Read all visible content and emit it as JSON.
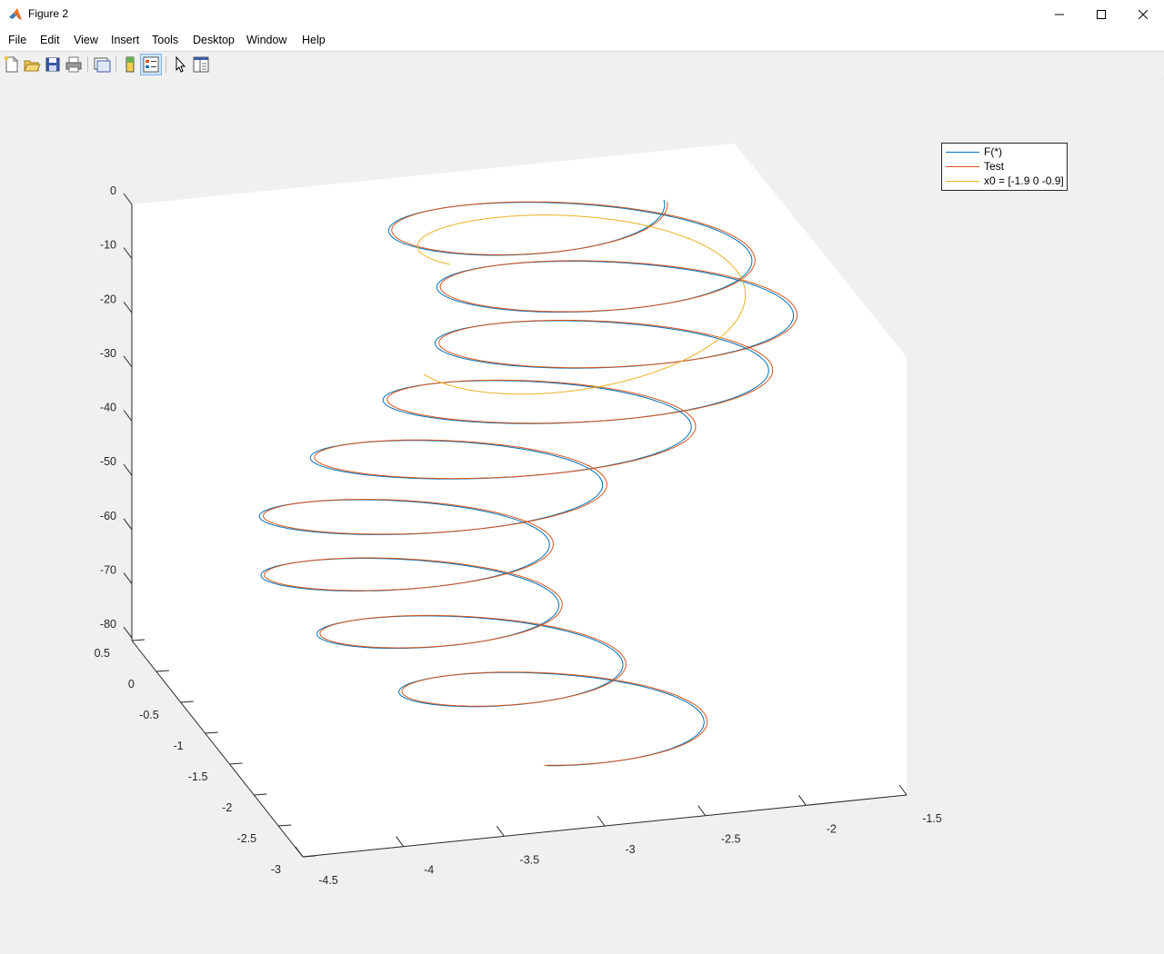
{
  "window": {
    "title": "Figure 2"
  },
  "menu": [
    "File",
    "Edit",
    "View",
    "Insert",
    "Tools",
    "Desktop",
    "Window",
    "Help"
  ],
  "toolbar": [
    "new-figure-icon",
    "open-icon",
    "save-icon",
    "print-icon",
    "link-plot-icon",
    "colorbar-icon",
    "legend-icon",
    "pointer-icon",
    "property-editor-icon"
  ],
  "legend": {
    "entries": [
      {
        "label": "F(*)",
        "color": "#0072BD"
      },
      {
        "label": "Test",
        "color": "#D95319"
      },
      {
        "label": "x0 = [-1.9 0 -0.9]",
        "color": "#EDB120"
      }
    ]
  },
  "chart_data": {
    "type": "line",
    "projection": "3d",
    "x_ticks": [
      "-4.5",
      "-4",
      "-3.5",
      "-3",
      "-2.5",
      "-2",
      "-1.5"
    ],
    "y_ticks": [
      "0.5",
      "0",
      "-0.5",
      "-1",
      "-1.5",
      "-2",
      "-2.5",
      "-3"
    ],
    "z_ticks": [
      "0",
      "-10",
      "-20",
      "-30",
      "-40",
      "-50",
      "-60",
      "-70",
      "-80"
    ],
    "xlim": [
      -4.5,
      -1.5
    ],
    "ylim": [
      -3,
      0.5
    ],
    "zlim": [
      -82,
      0
    ],
    "grid": false,
    "legend_position": "top-right",
    "series": [
      {
        "name": "F(*)",
        "color": "#0072BD",
        "description": "helical trajectory spiraling downward"
      },
      {
        "name": "Test",
        "color": "#D95319",
        "description": "helical trajectory nearly overlapping F(*)"
      },
      {
        "name": "x0 = [-1.9 0 -0.9]",
        "color": "#EDB120",
        "description": "short transient curve near top"
      }
    ]
  }
}
